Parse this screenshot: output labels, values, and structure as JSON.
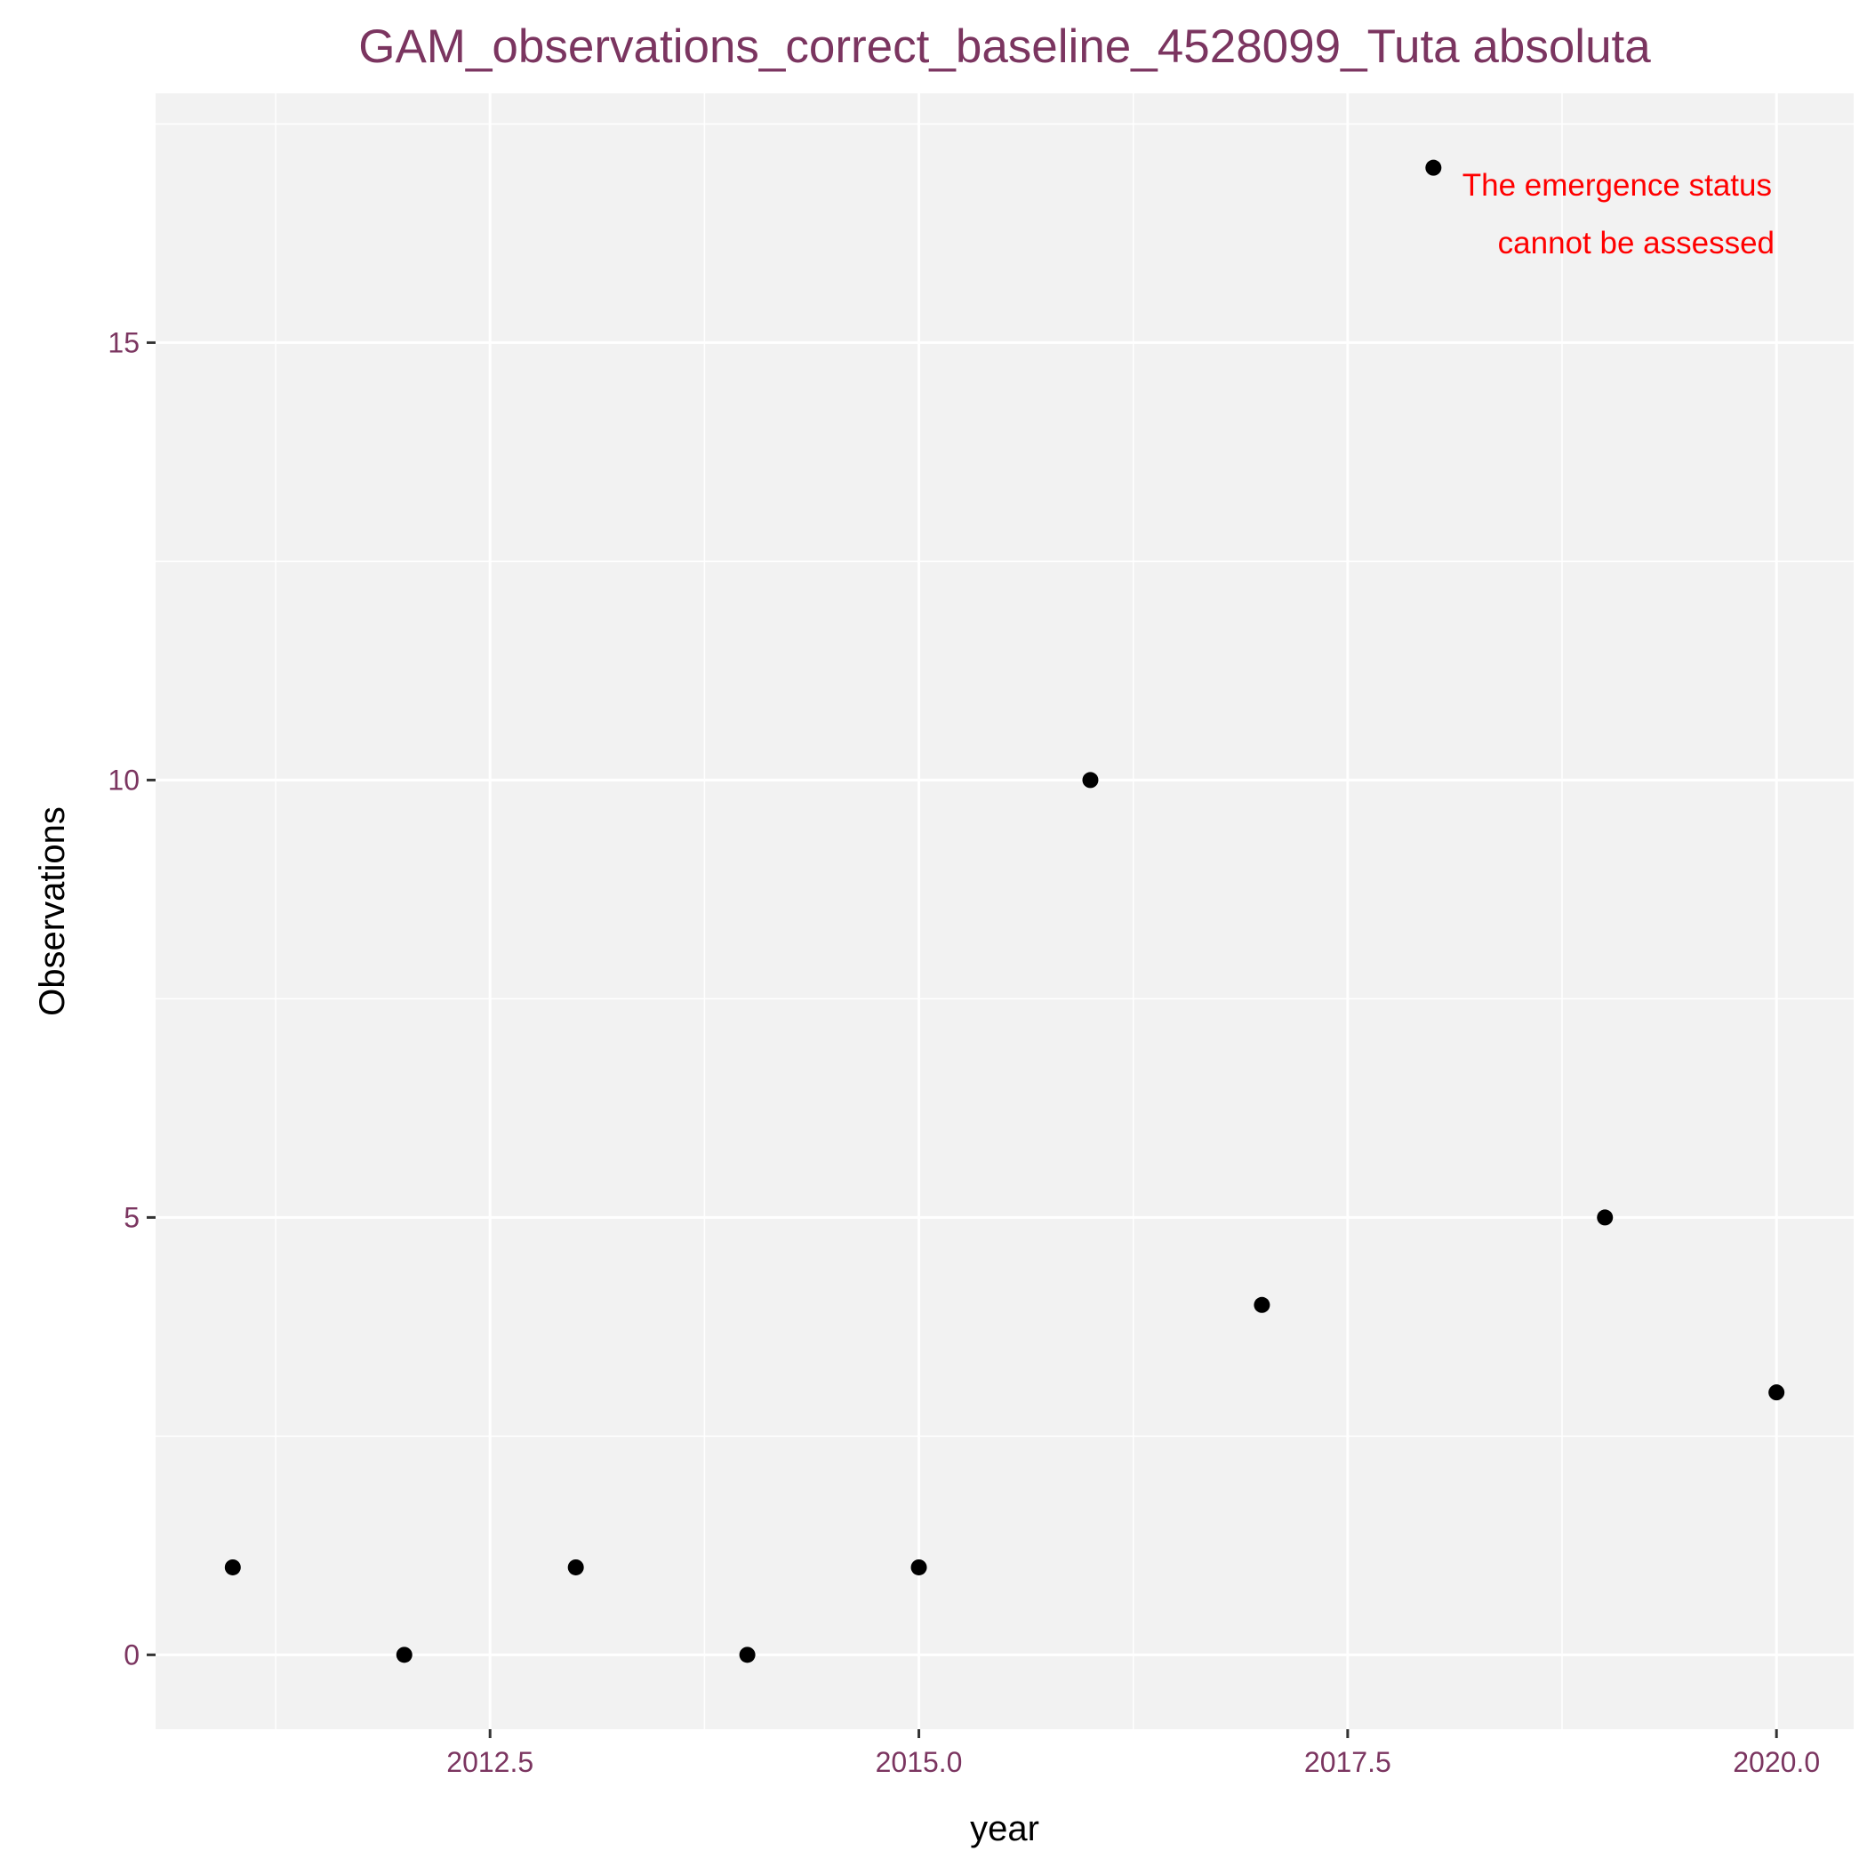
{
  "chart_data": {
    "type": "scatter",
    "title": "GAM_observations_correct_baseline_4528099_Tuta absoluta",
    "xlabel": "year",
    "ylabel": "Observations",
    "x": [
      2011,
      2012,
      2013,
      2014,
      2015,
      2016,
      2017,
      2018,
      2019,
      2020
    ],
    "y": [
      1,
      0,
      1,
      0,
      1,
      10,
      4,
      17,
      5,
      3
    ],
    "xlim": [
      2010.55,
      2020.45
    ],
    "ylim": [
      -0.85,
      17.85
    ],
    "x_ticks": [
      2012.5,
      2015.0,
      2017.5,
      2020.0
    ],
    "x_tick_labels": [
      "2012.5",
      "2015.0",
      "2017.5",
      "2020.0"
    ],
    "y_ticks": [
      0,
      5,
      10,
      15
    ],
    "y_tick_labels": [
      "0",
      "5",
      "10",
      "15"
    ],
    "grid": true,
    "annotation": [
      "The emergence status",
      "cannot be assessed"
    ],
    "colors": {
      "panel": "#f2f2f2",
      "grid": "#ffffff",
      "points": "#000000",
      "title": "#7b3560",
      "tick_labels": "#7b3560",
      "annotation": "#ff0000"
    }
  }
}
